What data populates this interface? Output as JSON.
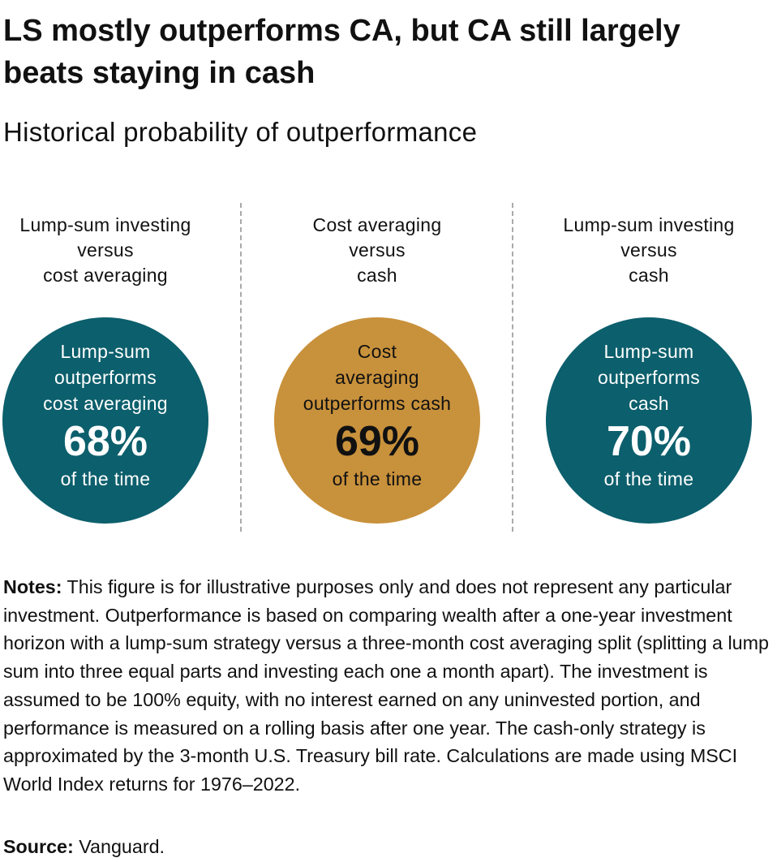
{
  "header": {
    "title": "LS mostly outperforms CA, but CA still largely beats staying in cash",
    "subtitle": "Historical probability of outperformance"
  },
  "panels": [
    {
      "heading": [
        "Lump-sum investing",
        "versus",
        "cost averaging"
      ],
      "circle_text": [
        "Lump-sum",
        "outperforms",
        "cost averaging"
      ],
      "percent": "68%",
      "footer": "of the time",
      "color": "#0c5f6c",
      "text_color": "#ffffff"
    },
    {
      "heading": [
        "Cost averaging",
        "versus",
        "cash"
      ],
      "circle_text": [
        "Cost",
        "averaging",
        "outperforms cash"
      ],
      "percent": "69%",
      "footer": "of the time",
      "color": "#c8913b",
      "text_color": "#111111"
    },
    {
      "heading": [
        "Lump-sum investing",
        "versus",
        "cash"
      ],
      "circle_text": [
        "Lump-sum",
        "outperforms",
        "cash"
      ],
      "percent": "70%",
      "footer": "of the time",
      "color": "#0c5f6c",
      "text_color": "#ffffff"
    }
  ],
  "notes": {
    "label": "Notes:",
    "text": "This figure is for illustrative purposes only and does not represent any particular investment. Outperformance is based on comparing wealth after a one-year investment horizon with a lump-sum strategy versus a three-month cost averaging split (splitting a lump sum into three equal parts and investing each one a month apart). The investment is assumed to be 100% equity, with no interest earned on any uninvested portion, and performance is measured on a rolling basis after one year. The cash-only strategy is approximated by the 3-month U.S. Treasury bill rate. Calculations are made using MSCI World Index returns for 1976–2022."
  },
  "source": {
    "label": "Source:",
    "text": "Vanguard."
  }
}
